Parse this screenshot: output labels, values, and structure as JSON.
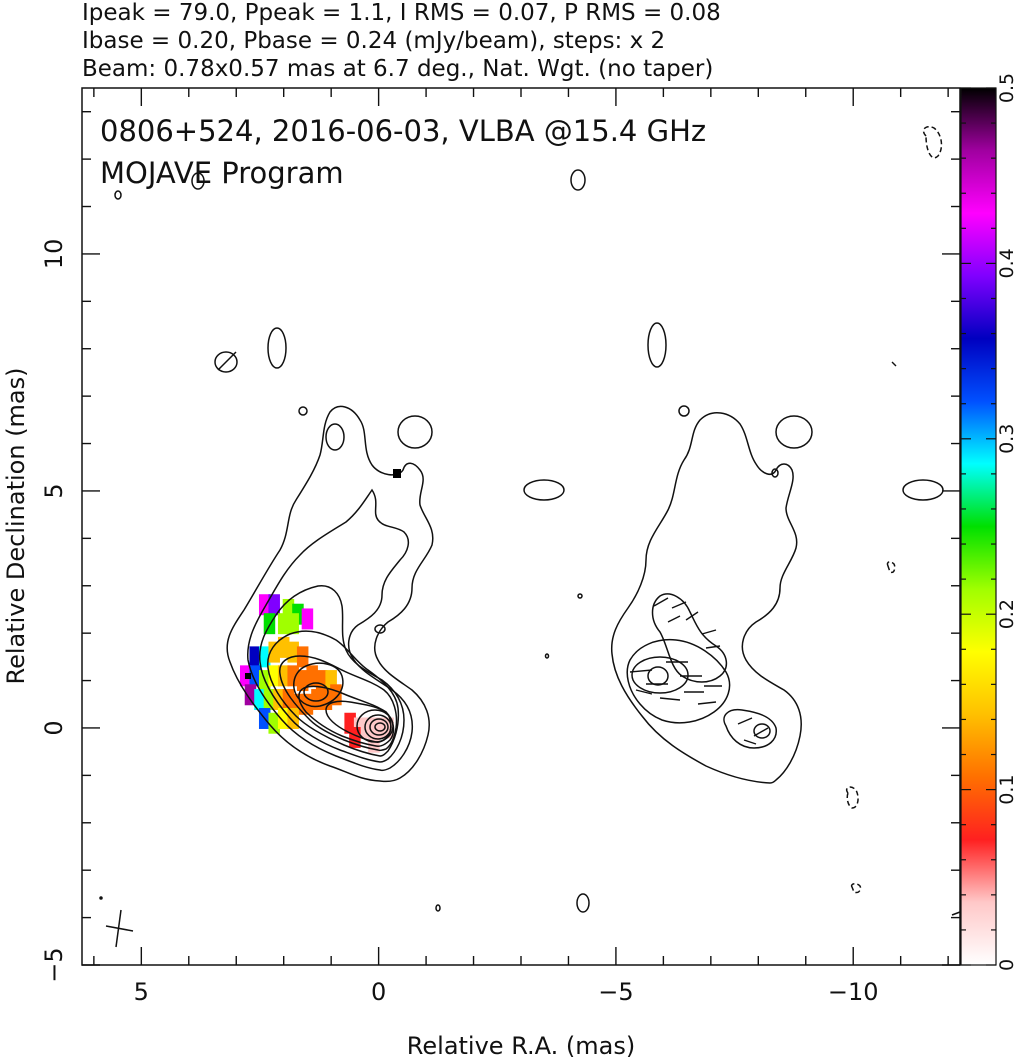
{
  "header": {
    "line1": "Ipeak = 79.0, Ppeak = 1.1, I RMS = 0.07, P RMS = 0.08",
    "line2": "Ibase = 0.20, Pbase = 0.24 (mJy/beam), steps: x 2",
    "line3": "Beam: 0.78x0.57 mas at 6.7 deg., Nat. Wgt. (no taper)"
  },
  "plot_title": {
    "line1": "0806+524, 2016-06-03, VLBA @15.4 GHz",
    "line2": "MOJAVE Program"
  },
  "chart_data": {
    "type": "heatmap",
    "xlabel": "Relative R.A. (mas)",
    "ylabel": "Relative Declination (mas)",
    "xlim": [
      6.25,
      -12.25
    ],
    "ylim": [
      -5,
      13.5
    ],
    "x_ticks": [
      5,
      0,
      -5,
      -10
    ],
    "x_tick_labels": [
      "5",
      "0",
      "−5",
      "−10"
    ],
    "y_ticks": [
      -5,
      0,
      5,
      10
    ],
    "y_tick_labels": [
      "−5",
      "0",
      "5",
      "10"
    ],
    "colorbar": {
      "min": 0,
      "max": 0.5,
      "ticks": [
        0,
        0.1,
        0.2,
        0.3,
        0.4,
        0.5
      ],
      "tick_labels": [
        "0",
        "0.1",
        "0.2",
        "0.3",
        "0.4",
        "0.5"
      ],
      "colors": [
        "#ffffff",
        "#ffc8c8",
        "#ff2020",
        "#ff7000",
        "#ffc000",
        "#ffff00",
        "#a0ff00",
        "#00e000",
        "#00ffff",
        "#0050ff",
        "#0000c0",
        "#8000ff",
        "#ff00ff",
        "#a000a0",
        "#000000"
      ]
    },
    "ipeak_mJy_per_beam": 79.0,
    "ppeak_mJy_per_beam": 1.1,
    "i_rms": 0.07,
    "p_rms": 0.08,
    "ibase": 0.2,
    "pbase": 0.24,
    "contour_step_factor": 2,
    "beam": {
      "major_mas": 0.78,
      "minor_mas": 0.57,
      "pa_deg": 6.7
    },
    "fractional_polarization_pixels": [
      {
        "x": 2.4,
        "y": 2.6,
        "v": 0.43
      },
      {
        "x": 2.2,
        "y": 2.6,
        "v": 0.38
      },
      {
        "x": 1.9,
        "y": 2.5,
        "v": 0.22
      },
      {
        "x": 1.7,
        "y": 2.4,
        "v": 0.25
      },
      {
        "x": 1.5,
        "y": 2.3,
        "v": 0.42
      },
      {
        "x": 2.3,
        "y": 2.2,
        "v": 0.26
      },
      {
        "x": 2.0,
        "y": 2.2,
        "v": 0.21
      },
      {
        "x": 1.8,
        "y": 2.2,
        "v": 0.23
      },
      {
        "x": 2.6,
        "y": 1.5,
        "v": 0.35
      },
      {
        "x": 2.4,
        "y": 1.5,
        "v": 0.27
      },
      {
        "x": 2.2,
        "y": 1.6,
        "v": 0.16
      },
      {
        "x": 2.0,
        "y": 1.7,
        "v": 0.14
      },
      {
        "x": 1.8,
        "y": 1.6,
        "v": 0.13
      },
      {
        "x": 1.6,
        "y": 1.5,
        "v": 0.12
      },
      {
        "x": 2.8,
        "y": 1.1,
        "v": 0.44
      },
      {
        "x": 2.6,
        "y": 1.1,
        "v": 0.32
      },
      {
        "x": 2.4,
        "y": 1.0,
        "v": 0.22
      },
      {
        "x": 2.2,
        "y": 1.1,
        "v": 0.17
      },
      {
        "x": 2.0,
        "y": 1.1,
        "v": 0.13
      },
      {
        "x": 1.8,
        "y": 1.1,
        "v": 0.11
      },
      {
        "x": 1.6,
        "y": 1.0,
        "v": 0.1
      },
      {
        "x": 1.4,
        "y": 1.1,
        "v": 0.11
      },
      {
        "x": 1.2,
        "y": 1.0,
        "v": 0.12
      },
      {
        "x": 1.0,
        "y": 1.0,
        "v": 0.13
      },
      {
        "x": 2.7,
        "y": 0.7,
        "v": 0.48
      },
      {
        "x": 2.5,
        "y": 0.6,
        "v": 0.3
      },
      {
        "x": 2.3,
        "y": 0.6,
        "v": 0.21
      },
      {
        "x": 2.1,
        "y": 0.6,
        "v": 0.16
      },
      {
        "x": 1.9,
        "y": 0.6,
        "v": 0.12
      },
      {
        "x": 1.7,
        "y": 0.5,
        "v": 0.1
      },
      {
        "x": 1.5,
        "y": 0.5,
        "v": 0.1
      },
      {
        "x": 1.3,
        "y": 0.6,
        "v": 0.11
      },
      {
        "x": 1.1,
        "y": 0.6,
        "v": 0.12
      },
      {
        "x": 0.9,
        "y": 0.7,
        "v": 0.12
      },
      {
        "x": 2.4,
        "y": 0.2,
        "v": 0.33
      },
      {
        "x": 2.2,
        "y": 0.1,
        "v": 0.23
      },
      {
        "x": 2.0,
        "y": 0.2,
        "v": 0.17
      },
      {
        "x": 1.8,
        "y": 0.2,
        "v": 0.13
      },
      {
        "x": 0.6,
        "y": 0.1,
        "v": 0.07
      },
      {
        "x": 0.4,
        "y": 0.0,
        "v": 0.04
      },
      {
        "x": 0.2,
        "y": 0.0,
        "v": 0.03
      },
      {
        "x": 0.0,
        "y": 0.0,
        "v": 0.02
      },
      {
        "x": -0.2,
        "y": 0.0,
        "v": 0.03
      },
      {
        "x": 0.5,
        "y": -0.2,
        "v": 0.06
      },
      {
        "x": 0.1,
        "y": -0.3,
        "v": 0.03
      }
    ]
  }
}
